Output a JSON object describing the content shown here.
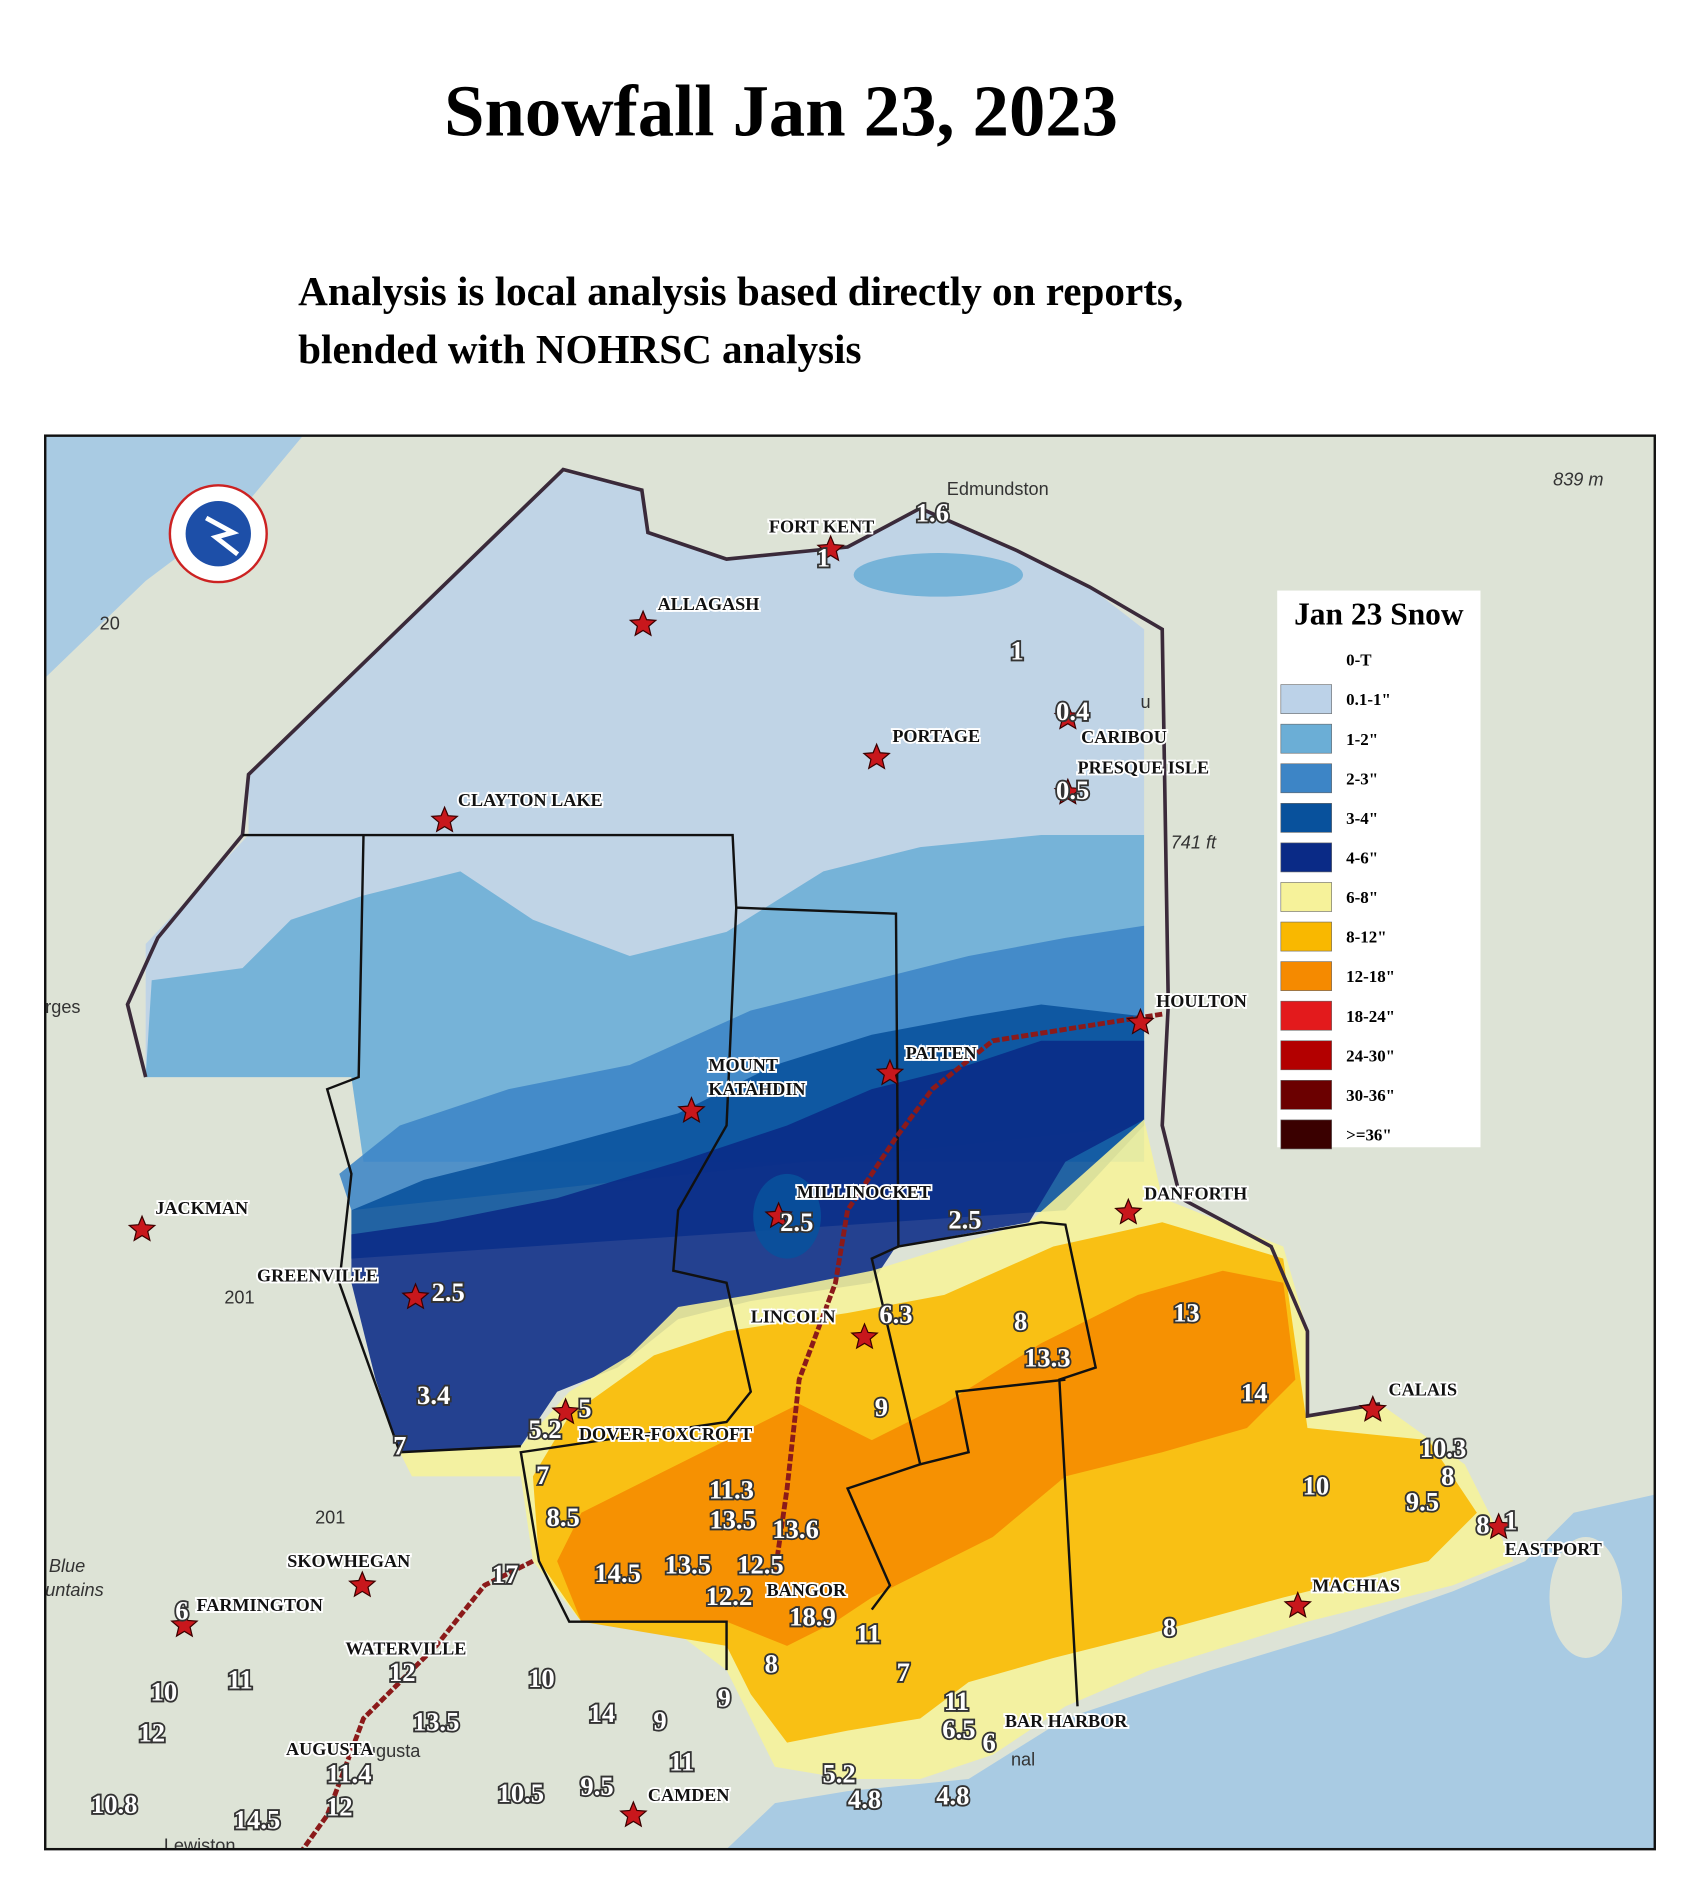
{
  "header": {
    "title": "Snowfall Jan 23, 2023",
    "subtitle": [
      "Analysis is local analysis based directly on reports,",
      "blended with NOHRSC analysis"
    ]
  },
  "legend": {
    "title": "Jan 23 Snow",
    "items": [
      {
        "label": "0-T",
        "color": "#ffffff"
      },
      {
        "label": "0.1-1\"",
        "color": "#bcd2e8"
      },
      {
        "label": "1-2\"",
        "color": "#6baed6"
      },
      {
        "label": "2-3\"",
        "color": "#3d85c6"
      },
      {
        "label": "3-4\"",
        "color": "#08519c"
      },
      {
        "label": "4-6\"",
        "color": "#0a2a86"
      },
      {
        "label": "6-8\"",
        "color": "#f6f29a"
      },
      {
        "label": "8-12\"",
        "color": "#f9b800"
      },
      {
        "label": "12-18\"",
        "color": "#f58a00"
      },
      {
        "label": "18-24\"",
        "color": "#e31a1c"
      },
      {
        "label": "24-30\"",
        "color": "#b30000"
      },
      {
        "label": "30-36\"",
        "color": "#6b0000"
      },
      {
        "label": ">=36\"",
        "color": "#3a0000"
      }
    ]
  },
  "places": [
    {
      "name": "FORT KENT"
    },
    {
      "name": "ALLAGASH"
    },
    {
      "name": "PORTAGE"
    },
    {
      "name": "CARIBOU"
    },
    {
      "name": "PRESQUE ISLE"
    },
    {
      "name": "CLAYTON LAKE"
    },
    {
      "name": "HOULTON"
    },
    {
      "name": "PATTEN"
    },
    {
      "name": [
        "MOUNT",
        "KATAHDIN"
      ]
    },
    {
      "name": "MILLINOCKET"
    },
    {
      "name": "DANFORTH"
    },
    {
      "name": "JACKMAN"
    },
    {
      "name": "GREENVILLE"
    },
    {
      "name": "LINCOLN"
    },
    {
      "name": "DOVER-FOXCROFT"
    },
    {
      "name": "CALAIS"
    },
    {
      "name": "EASTPORT"
    },
    {
      "name": "MACHIAS"
    },
    {
      "name": "SKOWHEGAN"
    },
    {
      "name": "FARMINGTON"
    },
    {
      "name": "WATERVILLE"
    },
    {
      "name": "BANGOR"
    },
    {
      "name": "BAR HARBOR"
    },
    {
      "name": "AUGUSTA"
    },
    {
      "name": "CAMDEN"
    }
  ],
  "amounts": [
    1.6,
    1,
    1,
    0.4,
    0.5,
    2.5,
    2.5,
    2.5,
    3.4,
    5,
    5.2,
    7,
    6.3,
    8,
    13.3,
    13,
    14,
    9,
    10.3,
    8,
    10,
    9.5,
    8,
    1,
    7,
    11.3,
    8.5,
    13.5,
    13.6,
    14.5,
    13.5,
    12.5,
    17,
    12.2,
    18.9,
    11,
    8,
    7,
    8,
    6,
    10,
    11,
    12,
    10,
    12,
    14,
    9,
    9,
    13.5,
    11,
    6.5,
    6,
    11,
    11.4,
    5.2,
    4.8,
    4.8,
    10.8,
    10.5,
    9.5,
    14.5,
    12
  ],
  "basemap_labels": [
    "Edmundston",
    "839 m",
    "741 ft",
    "20",
    "201",
    "201",
    "rges",
    "Blue",
    "untains",
    "Augusta",
    "Lewiston",
    "u",
    "nal"
  ]
}
